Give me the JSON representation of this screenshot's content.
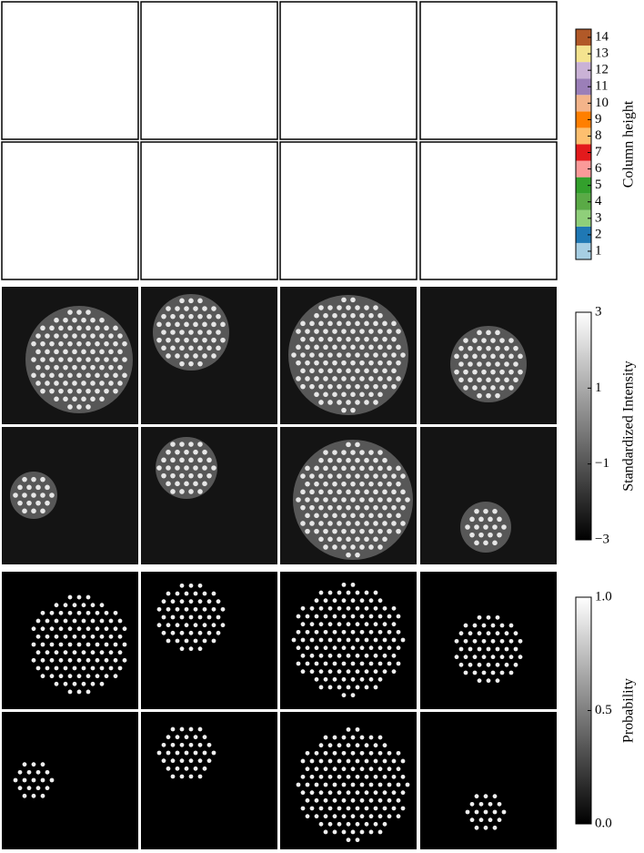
{
  "chart_data": [
    {
      "type": "colorbar",
      "ylabel": "Column height",
      "ylim": [
        0.5,
        14.5
      ],
      "yticks": [
        1,
        2,
        3,
        4,
        5,
        6,
        7,
        8,
        9,
        10,
        11,
        12,
        13,
        14
      ],
      "colors": [
        "#a6cee3",
        "#1f78b4",
        "#8fcf7a",
        "#5aaa46",
        "#33a02c",
        "#fb9a99",
        "#e31a1c",
        "#fdbf6f",
        "#ff7f00",
        "#f3b48a",
        "#9b7fb8",
        "#cab2d6",
        "#f4e38f",
        "#b15928"
      ]
    },
    {
      "type": "colorbar",
      "ylabel": "Standardized Intensity",
      "ylim": [
        -3,
        3
      ],
      "yticks": [
        {
          "value": -3,
          "label": "−3"
        },
        {
          "value": -1,
          "label": "−1"
        },
        1,
        3
      ],
      "colors": [
        "#000000",
        "#ffffff"
      ]
    },
    {
      "type": "colorbar",
      "ylabel": "Probability",
      "ylim": [
        0,
        1
      ],
      "yticks": [
        {
          "value": 0,
          "label": "0.0"
        },
        0.5,
        {
          "value": 1,
          "label": "1.0"
        }
      ],
      "colors": [
        "#000000",
        "#ffffff"
      ]
    }
  ]
}
